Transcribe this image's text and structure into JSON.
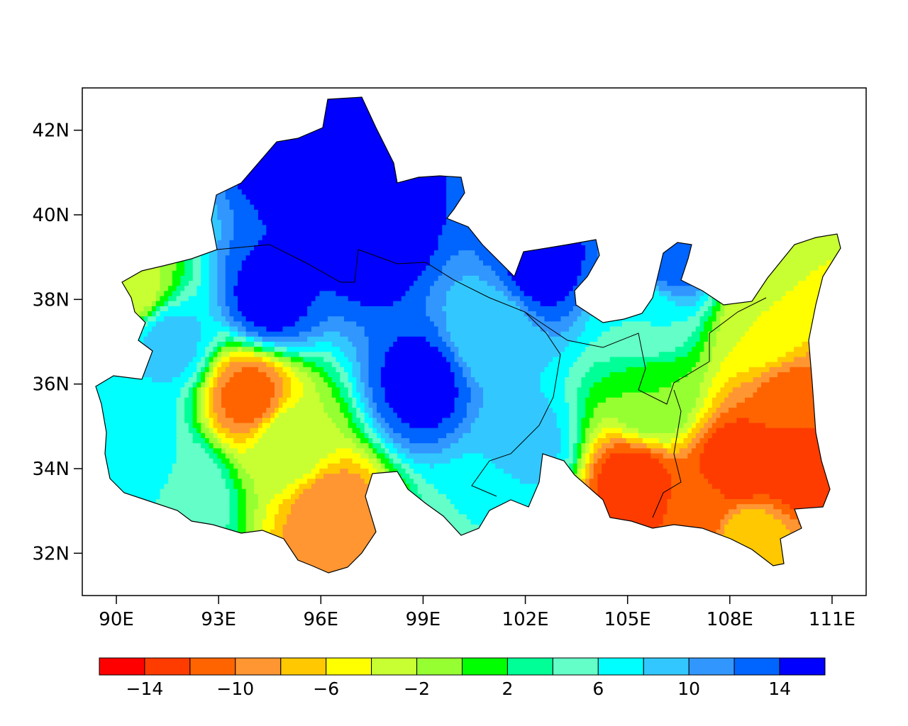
{
  "chart_data": {
    "type": "heatmap",
    "title": "",
    "xlabel": "",
    "ylabel": "",
    "x_ticks": [
      {
        "value": 90,
        "label": "90E"
      },
      {
        "value": 93,
        "label": "93E"
      },
      {
        "value": 96,
        "label": "96E"
      },
      {
        "value": 99,
        "label": "99E"
      },
      {
        "value": 102,
        "label": "102E"
      },
      {
        "value": 105,
        "label": "105E"
      },
      {
        "value": 108,
        "label": "108E"
      },
      {
        "value": 111,
        "label": "111E"
      }
    ],
    "y_ticks": [
      {
        "value": 32,
        "label": "32N"
      },
      {
        "value": 34,
        "label": "34N"
      },
      {
        "value": 36,
        "label": "36N"
      },
      {
        "value": 38,
        "label": "38N"
      },
      {
        "value": 40,
        "label": "40N"
      },
      {
        "value": 42,
        "label": "42N"
      }
    ],
    "xlim": [
      89,
      112
    ],
    "ylim": [
      31,
      43
    ],
    "colorbar": {
      "levels": [
        -16,
        -14,
        -12,
        -10,
        -8,
        -6,
        -4,
        -2,
        0,
        2,
        4,
        6,
        8,
        10,
        12,
        14,
        16
      ],
      "colors": [
        "#ff0000",
        "#ff3c00",
        "#ff6400",
        "#ff9632",
        "#ffc800",
        "#ffff00",
        "#c8ff32",
        "#96ff32",
        "#00ff00",
        "#00ff96",
        "#64ffc8",
        "#00ffff",
        "#32c8ff",
        "#3296ff",
        "#0064ff",
        "#0000ff"
      ],
      "tick_labels": [
        {
          "level": -14,
          "label": "−14"
        },
        {
          "level": -10,
          "label": "−10"
        },
        {
          "level": -6,
          "label": "−6"
        },
        {
          "level": -2,
          "label": "−2"
        },
        {
          "level": 2,
          "label": "2"
        },
        {
          "level": 6,
          "label": "6"
        },
        {
          "level": 10,
          "label": "10"
        },
        {
          "level": 14,
          "label": "14"
        }
      ]
    },
    "field_centers": [
      {
        "lon": 97.5,
        "lat": 39.5,
        "value": 16
      },
      {
        "lon": 95.5,
        "lat": 41.5,
        "value": 16
      },
      {
        "lon": 99.0,
        "lat": 36.0,
        "value": 15
      },
      {
        "lon": 94.5,
        "lat": 38.0,
        "value": 15
      },
      {
        "lon": 102.5,
        "lat": 38.8,
        "value": 15
      },
      {
        "lon": 90.5,
        "lat": 35.0,
        "value": 8
      },
      {
        "lon": 91.5,
        "lat": 37.0,
        "value": 9
      },
      {
        "lon": 101.0,
        "lat": 37.2,
        "value": 8
      },
      {
        "lon": 102.0,
        "lat": 34.5,
        "value": 9
      },
      {
        "lon": 101.0,
        "lat": 33.0,
        "value": 6
      },
      {
        "lon": 105.5,
        "lat": 37.5,
        "value": 6
      },
      {
        "lon": 106.3,
        "lat": 39.0,
        "value": 13
      },
      {
        "lon": 93.9,
        "lat": 35.7,
        "value": -11
      },
      {
        "lon": 96.3,
        "lat": 32.9,
        "value": -10
      },
      {
        "lon": 95.0,
        "lat": 34.6,
        "value": -2
      },
      {
        "lon": 92.0,
        "lat": 33.5,
        "value": 6
      },
      {
        "lon": 90.5,
        "lat": 38.2,
        "value": -3
      },
      {
        "lon": 105.2,
        "lat": 33.6,
        "value": -14
      },
      {
        "lon": 108.2,
        "lat": 34.0,
        "value": -14
      },
      {
        "lon": 109.8,
        "lat": 34.2,
        "value": -14
      },
      {
        "lon": 109.8,
        "lat": 35.6,
        "value": -11
      },
      {
        "lon": 107.2,
        "lat": 33.0,
        "value": -11
      },
      {
        "lon": 108.5,
        "lat": 32.3,
        "value": -6
      },
      {
        "lon": 110.7,
        "lat": 38.8,
        "value": -4
      },
      {
        "lon": 109.0,
        "lat": 37.3,
        "value": -4
      },
      {
        "lon": 105.8,
        "lat": 35.6,
        "value": 0
      }
    ]
  }
}
